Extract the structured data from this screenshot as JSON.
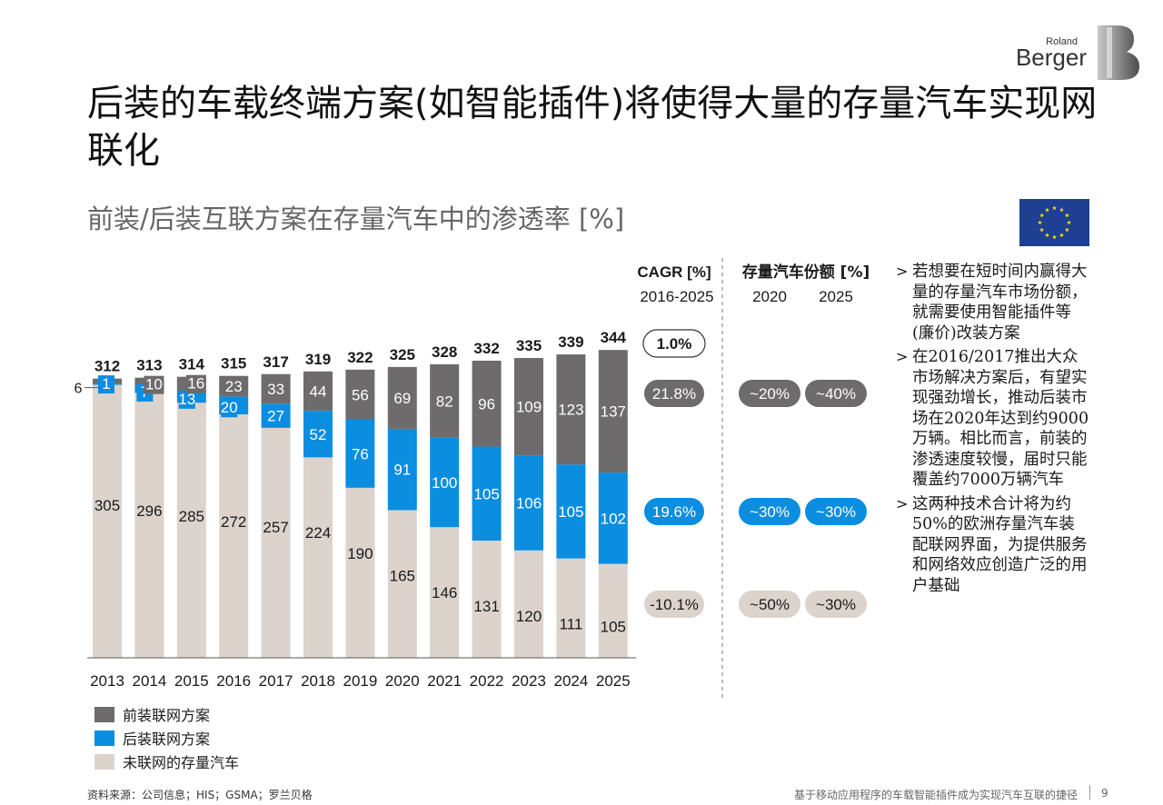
{
  "brand": {
    "small": "Roland",
    "big": "Berger"
  },
  "title": "后装的车载终端方案(如智能插件)将使得大量的存量汽车实现网联化",
  "subtitle": "前装/后装互联方案在存量汽车中的渗透率 [%]",
  "flag_icon": "eu-flag-icon",
  "colors": {
    "oem": "#6d6b6b",
    "aftermarket": "#0b8de0",
    "unconnected": "#dbd3cc"
  },
  "chart_data": {
    "type": "bar",
    "stacked": true,
    "categories": [
      "2013",
      "2014",
      "2015",
      "2016",
      "2017",
      "2018",
      "2019",
      "2020",
      "2021",
      "2022",
      "2023",
      "2024",
      "2025"
    ],
    "totals": [
      312,
      313,
      314,
      315,
      317,
      319,
      322,
      325,
      328,
      332,
      335,
      339,
      344
    ],
    "series": [
      {
        "name": "未联网的存量汽车",
        "values": [
          305,
          296,
          285,
          272,
          257,
          224,
          190,
          165,
          146,
          131,
          120,
          111,
          105
        ]
      },
      {
        "name": "后装联网方案",
        "values": [
          1,
          7,
          13,
          20,
          27,
          52,
          76,
          91,
          100,
          105,
          106,
          105,
          102
        ]
      },
      {
        "name": "前装联网方案",
        "values": [
          6,
          10,
          16,
          23,
          33,
          44,
          56,
          69,
          82,
          96,
          109,
          123,
          137
        ]
      }
    ],
    "callout": "6",
    "ylim": [
      0,
      344
    ],
    "legend_position": "bottom-left",
    "cagr": {
      "header": "CAGR [%]",
      "period": "2016-2025",
      "total": "1.0%",
      "values": [
        "21.8%",
        "19.6%",
        "-10.1%"
      ]
    },
    "share": {
      "header": "存量汽车份额 [%]",
      "years": [
        "2020",
        "2025"
      ],
      "rows": [
        [
          "~20%",
          "~40%"
        ],
        [
          "~30%",
          "~30%"
        ],
        [
          "~50%",
          "~30%"
        ]
      ]
    }
  },
  "legend": [
    {
      "label": "前装联网方案"
    },
    {
      "label": "后装联网方案"
    },
    {
      "label": "未联网的存量汽车"
    }
  ],
  "notes": [
    "若想要在短时间内赢得大量的存量汽车市场份额，就需要使用智能插件等(廉价)改装方案",
    "在2016/2017推出大众市场解决方案后，有望实现强劲增长，推动后装市场在2020年达到约9000万辆。相比而言，前装的渗透速度较慢，届时只能覆盖约7000万辆汽车",
    "这两种技术合计将为约50%的欧洲存量汽车装配联网界面，为提供服务和网络效应创造广泛的用户基础"
  ],
  "footer": {
    "source": "资料来源：公司信息；HIS；GSMA；罗兰贝格",
    "caption": "基于移动应用程序的车载智能插件成为实现汽车互联的捷径",
    "page": "9"
  }
}
